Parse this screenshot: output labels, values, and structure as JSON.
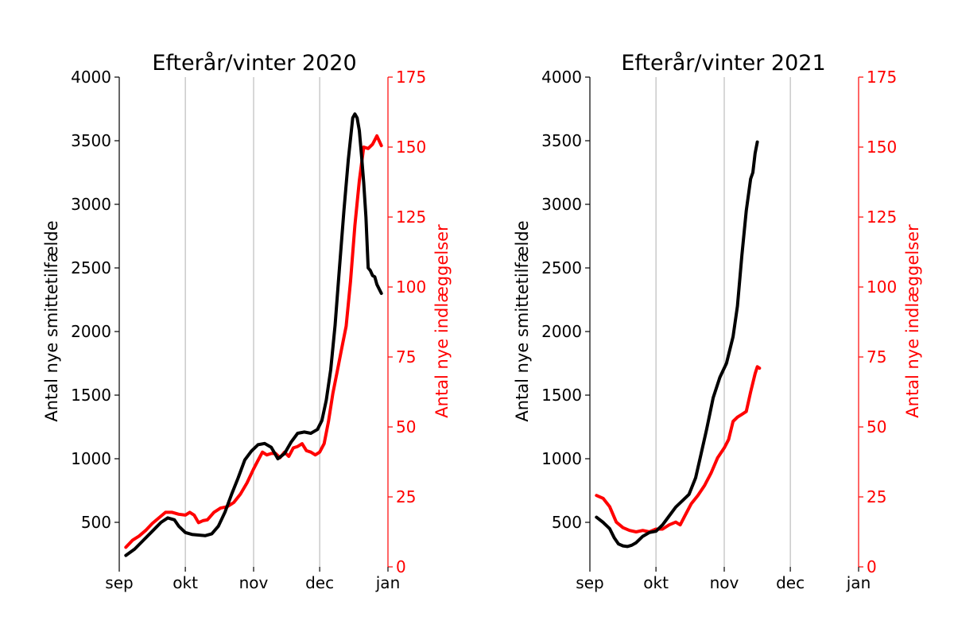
{
  "chart_data": [
    {
      "type": "line",
      "title": "Efterår/vinter 2020",
      "x_ticks": [
        "sep",
        "okt",
        "nov",
        "dec",
        "jan"
      ],
      "xlim": [
        "2020-09-01",
        "2021-01-01"
      ],
      "ylabel": "Antal nye smittetilfælde",
      "ylabel_right": "Antal nye indlæggelser",
      "ylim": [
        150,
        4000
      ],
      "ylim_right": [
        0,
        175
      ],
      "yticks": [
        500,
        1000,
        1500,
        2000,
        2500,
        3000,
        3500,
        4000
      ],
      "yticks_right": [
        0,
        25,
        50,
        75,
        100,
        125,
        150,
        175
      ],
      "grid": "vertical at month starts",
      "series": [
        {
          "axis": "left",
          "color": "#000000",
          "points": [
            [
              "2020-09-04",
              240
            ],
            [
              "2020-09-08",
              290
            ],
            [
              "2020-09-12",
              360
            ],
            [
              "2020-09-16",
              430
            ],
            [
              "2020-09-20",
              500
            ],
            [
              "2020-09-23",
              535
            ],
            [
              "2020-09-26",
              520
            ],
            [
              "2020-09-28",
              470
            ],
            [
              "2020-10-01",
              420
            ],
            [
              "2020-10-04",
              405
            ],
            [
              "2020-10-07",
              400
            ],
            [
              "2020-10-10",
              395
            ],
            [
              "2020-10-13",
              410
            ],
            [
              "2020-10-16",
              470
            ],
            [
              "2020-10-19",
              580
            ],
            [
              "2020-10-22",
              720
            ],
            [
              "2020-10-25",
              850
            ],
            [
              "2020-10-28",
              990
            ],
            [
              "2020-10-31",
              1060
            ],
            [
              "2020-11-03",
              1110
            ],
            [
              "2020-11-06",
              1120
            ],
            [
              "2020-11-09",
              1090
            ],
            [
              "2020-11-12",
              1000
            ],
            [
              "2020-11-15",
              1040
            ],
            [
              "2020-11-18",
              1130
            ],
            [
              "2020-11-21",
              1200
            ],
            [
              "2020-11-24",
              1210
            ],
            [
              "2020-11-27",
              1200
            ],
            [
              "2020-11-30",
              1230
            ],
            [
              "2020-12-02",
              1300
            ],
            [
              "2020-12-04",
              1460
            ],
            [
              "2020-12-06",
              1700
            ],
            [
              "2020-12-08",
              2050
            ],
            [
              "2020-12-10",
              2500
            ],
            [
              "2020-12-12",
              2950
            ],
            [
              "2020-12-14",
              3350
            ],
            [
              "2020-12-16",
              3680
            ],
            [
              "2020-12-17",
              3710
            ],
            [
              "2020-12-18",
              3680
            ],
            [
              "2020-12-19",
              3580
            ],
            [
              "2020-12-20",
              3380
            ],
            [
              "2020-12-21",
              3170
            ],
            [
              "2020-12-22",
              2900
            ],
            [
              "2020-12-23",
              2500
            ],
            [
              "2020-12-24",
              2480
            ],
            [
              "2020-12-25",
              2440
            ],
            [
              "2020-12-26",
              2430
            ],
            [
              "2020-12-27",
              2370
            ],
            [
              "2020-12-29",
              2300
            ]
          ]
        },
        {
          "axis": "right",
          "color": "#ff0000",
          "points": [
            [
              "2020-09-04",
              7
            ],
            [
              "2020-09-07",
              9.5
            ],
            [
              "2020-09-10",
              11
            ],
            [
              "2020-09-13",
              13
            ],
            [
              "2020-09-16",
              15.5
            ],
            [
              "2020-09-19",
              17.5
            ],
            [
              "2020-09-22",
              19.5
            ],
            [
              "2020-09-25",
              19.5
            ],
            [
              "2020-09-28",
              18.8
            ],
            [
              "2020-10-01",
              18.5
            ],
            [
              "2020-10-03",
              19.5
            ],
            [
              "2020-10-05",
              18.5
            ],
            [
              "2020-10-07",
              15.8
            ],
            [
              "2020-10-09",
              16.5
            ],
            [
              "2020-10-11",
              16.8
            ],
            [
              "2020-10-14",
              19.5
            ],
            [
              "2020-10-17",
              21
            ],
            [
              "2020-10-20",
              21.5
            ],
            [
              "2020-10-23",
              23
            ],
            [
              "2020-10-26",
              26
            ],
            [
              "2020-10-29",
              30
            ],
            [
              "2020-11-01",
              35
            ],
            [
              "2020-11-03",
              38
            ],
            [
              "2020-11-05",
              41
            ],
            [
              "2020-11-07",
              40
            ],
            [
              "2020-11-09",
              40.5
            ],
            [
              "2020-11-11",
              40.5
            ],
            [
              "2020-11-13",
              39
            ],
            [
              "2020-11-15",
              41
            ],
            [
              "2020-11-17",
              39.5
            ],
            [
              "2020-11-19",
              42.5
            ],
            [
              "2020-11-21",
              43
            ],
            [
              "2020-11-23",
              44
            ],
            [
              "2020-11-25",
              41.5
            ],
            [
              "2020-11-27",
              41
            ],
            [
              "2020-11-29",
              40
            ],
            [
              "2020-12-01",
              41
            ],
            [
              "2020-12-03",
              44
            ],
            [
              "2020-12-05",
              52
            ],
            [
              "2020-12-07",
              62
            ],
            [
              "2020-12-09",
              70
            ],
            [
              "2020-12-11",
              78
            ],
            [
              "2020-12-13",
              86
            ],
            [
              "2020-12-15",
              102
            ],
            [
              "2020-12-17",
              122
            ],
            [
              "2020-12-19",
              138
            ],
            [
              "2020-12-21",
              150
            ],
            [
              "2020-12-23",
              149.5
            ],
            [
              "2020-12-25",
              151
            ],
            [
              "2020-12-27",
              154
            ],
            [
              "2020-12-29",
              150.5
            ]
          ]
        }
      ]
    },
    {
      "type": "line",
      "title": "Efterår/vinter 2021",
      "x_ticks": [
        "sep",
        "okt",
        "nov",
        "dec",
        "jan"
      ],
      "xlim": [
        "2021-09-01",
        "2022-01-01"
      ],
      "ylabel": "Antal nye smittetilfælde",
      "ylabel_right": "Antal nye indlæggelser",
      "ylim": [
        150,
        4000
      ],
      "ylim_right": [
        0,
        175
      ],
      "yticks": [
        500,
        1000,
        1500,
        2000,
        2500,
        3000,
        3500,
        4000
      ],
      "yticks_right": [
        0,
        25,
        50,
        75,
        100,
        125,
        150,
        175
      ],
      "grid": "vertical at month starts",
      "series": [
        {
          "axis": "left",
          "color": "#000000",
          "points": [
            [
              "2021-09-04",
              540
            ],
            [
              "2021-09-07",
              500
            ],
            [
              "2021-09-10",
              450
            ],
            [
              "2021-09-12",
              380
            ],
            [
              "2021-09-14",
              330
            ],
            [
              "2021-09-16",
              315
            ],
            [
              "2021-09-18",
              310
            ],
            [
              "2021-09-20",
              320
            ],
            [
              "2021-09-22",
              340
            ],
            [
              "2021-09-25",
              390
            ],
            [
              "2021-09-28",
              420
            ],
            [
              "2021-10-01",
              430
            ],
            [
              "2021-10-04",
              480
            ],
            [
              "2021-10-07",
              550
            ],
            [
              "2021-10-10",
              620
            ],
            [
              "2021-10-13",
              670
            ],
            [
              "2021-10-16",
              720
            ],
            [
              "2021-10-19",
              850
            ],
            [
              "2021-10-21",
              1000
            ],
            [
              "2021-10-24",
              1230
            ],
            [
              "2021-10-27",
              1480
            ],
            [
              "2021-10-30",
              1640
            ],
            [
              "2021-11-02",
              1750
            ],
            [
              "2021-11-05",
              1960
            ],
            [
              "2021-11-07",
              2200
            ],
            [
              "2021-11-09",
              2600
            ],
            [
              "2021-11-11",
              2950
            ],
            [
              "2021-11-13",
              3200
            ],
            [
              "2021-11-14",
              3250
            ],
            [
              "2021-11-15",
              3400
            ],
            [
              "2021-11-16",
              3490
            ]
          ]
        },
        {
          "axis": "right",
          "color": "#ff0000",
          "points": [
            [
              "2021-09-04",
              25.5
            ],
            [
              "2021-09-07",
              24.5
            ],
            [
              "2021-09-10",
              21.5
            ],
            [
              "2021-09-13",
              16
            ],
            [
              "2021-09-16",
              14
            ],
            [
              "2021-09-19",
              13
            ],
            [
              "2021-09-22",
              12.5
            ],
            [
              "2021-09-25",
              13
            ],
            [
              "2021-09-28",
              12.5
            ],
            [
              "2021-10-01",
              13.5
            ],
            [
              "2021-10-04",
              13.5
            ],
            [
              "2021-10-07",
              15
            ],
            [
              "2021-10-10",
              16
            ],
            [
              "2021-10-12",
              15
            ],
            [
              "2021-10-14",
              18
            ],
            [
              "2021-10-17",
              22.5
            ],
            [
              "2021-10-20",
              25.5
            ],
            [
              "2021-10-23",
              29
            ],
            [
              "2021-10-26",
              33.5
            ],
            [
              "2021-10-29",
              39
            ],
            [
              "2021-11-01",
              42.5
            ],
            [
              "2021-11-03",
              45.5
            ],
            [
              "2021-11-05",
              52
            ],
            [
              "2021-11-07",
              53.5
            ],
            [
              "2021-11-09",
              54.5
            ],
            [
              "2021-11-11",
              55.5
            ],
            [
              "2021-11-13",
              62.5
            ],
            [
              "2021-11-15",
              69
            ],
            [
              "2021-11-16",
              71.5
            ],
            [
              "2021-11-17",
              71
            ]
          ]
        }
      ]
    }
  ]
}
